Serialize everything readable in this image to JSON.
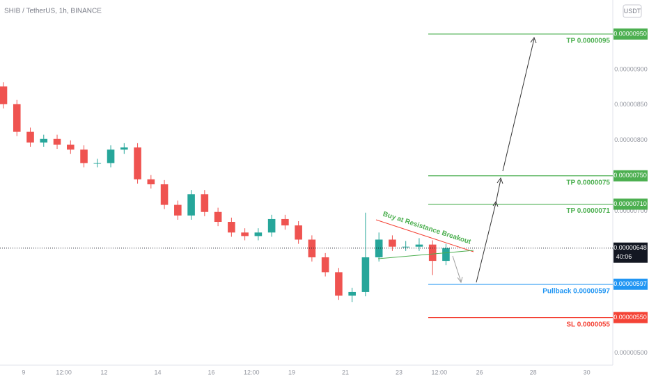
{
  "chart_data": {
    "type": "candlestick",
    "title": "SHIB / TetherUS, 1h, BINANCE",
    "currency_button": "USDT",
    "x": [
      8.25,
      8.75,
      9.25,
      9.75,
      10.25,
      10.75,
      11.25,
      11.75,
      12.25,
      12.75,
      13.25,
      13.75,
      14.25,
      14.75,
      15.25,
      15.75,
      16.25,
      16.75,
      17.25,
      17.75,
      18.25,
      18.75,
      19.25,
      19.75,
      20.25,
      20.75,
      21.25,
      21.75,
      22.25,
      22.75,
      23.25,
      23.75,
      24.25,
      24.75
    ],
    "open": [
      8.76e-06,
      8.51e-06,
      8.12e-06,
      7.97e-06,
      8.02e-06,
      7.94e-06,
      7.87e-06,
      7.68e-06,
      7.68e-06,
      7.87e-06,
      7.9e-06,
      7.45e-06,
      7.38e-06,
      7.09e-06,
      6.94e-06,
      7.24e-06,
      6.99e-06,
      6.85e-06,
      6.7e-06,
      6.65e-06,
      6.7e-06,
      6.89e-06,
      6.8e-06,
      6.6e-06,
      6.35e-06,
      6.14e-06,
      5.81e-06,
      5.86e-06,
      6.35e-06,
      6.6e-06,
      6.5e-06,
      6.5e-06,
      6.53e-06,
      6.3e-06
    ],
    "high": [
      8.82e-06,
      8.57e-06,
      8.18e-06,
      8.08e-06,
      8.08e-06,
      8e-06,
      7.93e-06,
      7.74e-06,
      7.93e-06,
      7.96e-06,
      7.96e-06,
      7.51e-06,
      7.44e-06,
      7.15e-06,
      7.3e-06,
      7.3e-06,
      7.05e-06,
      6.91e-06,
      6.76e-06,
      6.76e-06,
      6.95e-06,
      6.95e-06,
      6.86e-06,
      6.66e-06,
      6.41e-06,
      6.2e-06,
      5.92e-06,
      6.98e-06,
      6.7e-06,
      6.66e-06,
      6.58e-06,
      6.62e-06,
      6.59e-06,
      6.54e-06
    ],
    "low": [
      8.45e-06,
      8.06e-06,
      7.91e-06,
      7.91e-06,
      7.88e-06,
      7.81e-06,
      7.62e-06,
      7.62e-06,
      7.62e-06,
      7.81e-06,
      7.39e-06,
      7.32e-06,
      7.03e-06,
      6.88e-06,
      6.88e-06,
      6.93e-06,
      6.79e-06,
      6.64e-06,
      6.59e-06,
      6.59e-06,
      6.64e-06,
      6.74e-06,
      6.54e-06,
      6.29e-06,
      6.08e-06,
      5.75e-06,
      5.72e-06,
      5.8e-06,
      6.29e-06,
      6.44e-06,
      6.44e-06,
      6.44e-06,
      6.1e-06,
      6.24e-06
    ],
    "close": [
      8.51e-06,
      8.12e-06,
      7.97e-06,
      8.02e-06,
      7.94e-06,
      7.87e-06,
      7.68e-06,
      7.68e-06,
      7.87e-06,
      7.9e-06,
      7.45e-06,
      7.38e-06,
      7.09e-06,
      6.94e-06,
      7.24e-06,
      6.99e-06,
      6.85e-06,
      6.7e-06,
      6.65e-06,
      6.7e-06,
      6.89e-06,
      6.8e-06,
      6.6e-06,
      6.35e-06,
      6.14e-06,
      5.81e-06,
      5.86e-06,
      6.35e-06,
      6.6e-06,
      6.5e-06,
      6.5e-06,
      6.53e-06,
      6.3e-06,
      6.48e-06
    ],
    "up_color": "#26a69a",
    "down_color": "#ef5350",
    "xlim": [
      8.12,
      30.97
    ],
    "xticks": [
      {
        "value": 9,
        "label": "9"
      },
      {
        "value": 10.5,
        "label": "12:00"
      },
      {
        "value": 12,
        "label": "12"
      },
      {
        "value": 14,
        "label": "14"
      },
      {
        "value": 16,
        "label": "16"
      },
      {
        "value": 17.5,
        "label": "12:00"
      },
      {
        "value": 19,
        "label": "19"
      },
      {
        "value": 21,
        "label": "21"
      },
      {
        "value": 23,
        "label": "23"
      },
      {
        "value": 24.5,
        "label": "12:00"
      },
      {
        "value": 26,
        "label": "26"
      },
      {
        "value": 28,
        "label": "28"
      },
      {
        "value": 30,
        "label": "30"
      }
    ],
    "ylim": [
      4.78e-06,
      9.98e-06
    ],
    "yticks": [
      {
        "value": 9e-06,
        "label": "0.00000900"
      },
      {
        "value": 8.5e-06,
        "label": "0.00000850"
      },
      {
        "value": 8e-06,
        "label": "0.00000800"
      },
      {
        "value": 7e-06,
        "label": "0.00000700"
      },
      {
        "value": 5e-06,
        "label": "0.00000500"
      }
    ],
    "levels": [
      {
        "value": 9.5e-06,
        "label": "TP 0.0000095",
        "tag": "0.00000950",
        "color": "#4caf50"
      },
      {
        "value": 7.5e-06,
        "label": "TP 0.0000075",
        "tag": "0.00000750",
        "color": "#4caf50"
      },
      {
        "value": 7.1e-06,
        "label": "TP 0.0000071",
        "tag": "0.00000710",
        "color": "#4caf50"
      },
      {
        "value": 5.97e-06,
        "label": "Pullback 0.00000597",
        "tag": "0.00000597",
        "color": "#2196f3"
      },
      {
        "value": 5.5e-06,
        "label": "SL 0.0000055",
        "tag": "0.00000550",
        "color": "#f44336"
      }
    ],
    "last_price": {
      "value": 6.48e-06,
      "tag": "0.00000648",
      "countdown": "40:06"
    },
    "annotation": "Buy at Resistance Breakout"
  }
}
